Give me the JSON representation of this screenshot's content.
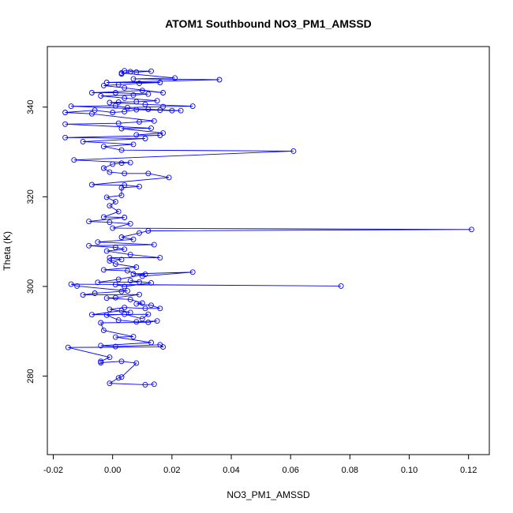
{
  "chart_data": {
    "type": "scatter",
    "title": "ATOM1 Southbound NO3_PM1_AMSSD",
    "xlabel": "NO3_PM1_AMSSD",
    "ylabel": "Theta (K)",
    "xlim": [
      -0.022,
      0.127
    ],
    "ylim": [
      262.5,
      353.5
    ],
    "xticks": [
      -0.02,
      0.0,
      0.02,
      0.04,
      0.06,
      0.08,
      0.1,
      0.12
    ],
    "xtick_labels": [
      "-0.02",
      "0.00",
      "0.02",
      "0.04",
      "0.06",
      "0.08",
      "0.10",
      "0.12"
    ],
    "yticks": [
      280,
      300,
      320,
      340
    ],
    "ytick_labels": [
      "280",
      "300",
      "320",
      "340"
    ],
    "series_color": "#0000ff",
    "marker": "open-circle",
    "connected": true,
    "grid": false,
    "points": [
      [
        0.014,
        278.2
      ],
      [
        0.011,
        278.1
      ],
      [
        -0.001,
        278.4
      ],
      [
        0.002,
        279.6
      ],
      [
        0.003,
        279.8
      ],
      [
        0.008,
        282.9
      ],
      [
        0.003,
        283.3
      ],
      [
        -0.004,
        283.0
      ],
      [
        -0.004,
        283.3
      ],
      [
        -0.001,
        284.2
      ],
      [
        -0.015,
        286.4
      ],
      [
        0.017,
        286.5
      ],
      [
        0.016,
        287.0
      ],
      [
        0.001,
        286.6
      ],
      [
        -0.004,
        286.8
      ],
      [
        0.013,
        287.5
      ],
      [
        0.001,
        288.7
      ],
      [
        0.007,
        288.8
      ],
      [
        -0.003,
        290.2
      ],
      [
        -0.004,
        291.9
      ],
      [
        0.012,
        292.0
      ],
      [
        0.015,
        292.3
      ],
      [
        0.008,
        292.1
      ],
      [
        0.002,
        292.5
      ],
      [
        -0.002,
        293.6
      ],
      [
        0.004,
        293.8
      ],
      [
        0.01,
        292.8
      ],
      [
        0.012,
        293.8
      ],
      [
        -0.007,
        293.7
      ],
      [
        0.003,
        294.6
      ],
      [
        0.006,
        294.2
      ],
      [
        -0.001,
        294.9
      ],
      [
        0.004,
        295.3
      ],
      [
        0.011,
        295.1
      ],
      [
        0.016,
        295.1
      ],
      [
        0.013,
        295.8
      ],
      [
        0.008,
        296.1
      ],
      [
        0.01,
        296.3
      ],
      [
        0.006,
        297.1
      ],
      [
        -0.002,
        297.4
      ],
      [
        0.001,
        297.5
      ],
      [
        0.009,
        298.2
      ],
      [
        -0.01,
        298.1
      ],
      [
        -0.006,
        298.5
      ],
      [
        0.003,
        298.9
      ],
      [
        0.005,
        299.0
      ],
      [
        -0.012,
        300.1
      ],
      [
        -0.014,
        300.5
      ],
      [
        0.077,
        300.1
      ],
      [
        0.001,
        300.4
      ],
      [
        0.004,
        300.0
      ],
      [
        0.013,
        300.8
      ],
      [
        0.006,
        301.3
      ],
      [
        0.009,
        301.0
      ],
      [
        -0.005,
        300.9
      ],
      [
        0.002,
        301.6
      ],
      [
        0.011,
        302.7
      ],
      [
        0.007,
        302.8
      ],
      [
        0.027,
        303.2
      ],
      [
        0.01,
        302.3
      ],
      [
        0.005,
        303.5
      ],
      [
        -0.003,
        303.7
      ],
      [
        0.008,
        304.3
      ],
      [
        0.001,
        305.0
      ],
      [
        -0.001,
        305.7
      ],
      [
        0.003,
        306.0
      ],
      [
        -0.001,
        306.4
      ],
      [
        0.016,
        306.4
      ],
      [
        0.006,
        307.1
      ],
      [
        -0.002,
        307.9
      ],
      [
        0.004,
        308.3
      ],
      [
        0.001,
        308.7
      ],
      [
        -0.008,
        309.1
      ],
      [
        0.014,
        309.3
      ],
      [
        -0.005,
        309.9
      ],
      [
        0.007,
        310.5
      ],
      [
        0.003,
        311.0
      ],
      [
        0.009,
        311.9
      ],
      [
        0.012,
        312.4
      ],
      [
        0.121,
        312.7
      ],
      [
        0.0,
        313.0
      ],
      [
        0.006,
        314.0
      ],
      [
        -0.001,
        314.3
      ],
      [
        -0.008,
        314.5
      ],
      [
        0.004,
        315.4
      ],
      [
        -0.003,
        315.5
      ],
      [
        0.002,
        316.7
      ],
      [
        -0.001,
        318.0
      ],
      [
        0.001,
        318.9
      ],
      [
        -0.002,
        319.9
      ],
      [
        0.003,
        320.3
      ],
      [
        0.003,
        322.0
      ],
      [
        0.009,
        322.3
      ],
      [
        0.004,
        322.6
      ],
      [
        -0.007,
        322.7
      ],
      [
        0.019,
        324.3
      ],
      [
        0.012,
        325.2
      ],
      [
        0.004,
        325.2
      ],
      [
        -0.001,
        325.5
      ],
      [
        -0.003,
        326.4
      ],
      [
        0.0,
        327.3
      ],
      [
        0.003,
        327.5
      ],
      [
        0.006,
        327.6
      ],
      [
        -0.013,
        328.2
      ],
      [
        0.061,
        330.2
      ],
      [
        0.003,
        330.4
      ],
      [
        -0.003,
        331.2
      ],
      [
        0.007,
        331.7
      ],
      [
        -0.01,
        332.3
      ],
      [
        0.011,
        333.0
      ],
      [
        -0.016,
        333.2
      ],
      [
        0.016,
        333.7
      ],
      [
        0.008,
        333.8
      ],
      [
        0.017,
        334.2
      ],
      [
        0.003,
        335.2
      ],
      [
        0.013,
        335.3
      ],
      [
        -0.016,
        336.2
      ],
      [
        0.002,
        336.4
      ],
      [
        0.009,
        336.7
      ],
      [
        0.014,
        336.9
      ],
      [
        -0.007,
        338.5
      ],
      [
        -0.016,
        338.8
      ],
      [
        -0.006,
        339.3
      ],
      [
        0.0,
        338.8
      ],
      [
        0.004,
        339.0
      ],
      [
        0.008,
        339.4
      ],
      [
        0.016,
        339.3
      ],
      [
        0.02,
        339.2
      ],
      [
        0.023,
        339.2
      ],
      [
        0.012,
        339.5
      ],
      [
        -0.014,
        340.2
      ],
      [
        0.001,
        340.3
      ],
      [
        0.005,
        339.9
      ],
      [
        0.017,
        340.1
      ],
      [
        0.027,
        340.2
      ],
      [
        0.011,
        340.6
      ],
      [
        -0.001,
        341.0
      ],
      [
        0.002,
        341.1
      ],
      [
        0.008,
        341.2
      ],
      [
        0.015,
        341.4
      ],
      [
        0.004,
        342.0
      ],
      [
        -0.004,
        342.5
      ],
      [
        0.007,
        342.7
      ],
      [
        0.012,
        342.9
      ],
      [
        0.001,
        343.2
      ],
      [
        -0.007,
        343.2
      ],
      [
        0.01,
        343.7
      ],
      [
        0.017,
        343.2
      ],
      [
        0.004,
        344.3
      ],
      [
        -0.003,
        344.8
      ],
      [
        0.002,
        345.0
      ],
      [
        0.009,
        345.3
      ],
      [
        0.016,
        345.5
      ],
      [
        -0.002,
        345.5
      ],
      [
        0.036,
        346.1
      ],
      [
        0.007,
        346.3
      ],
      [
        0.021,
        346.5
      ],
      [
        0.003,
        347.6
      ],
      [
        0.004,
        348.1
      ],
      [
        0.013,
        348.0
      ],
      [
        0.008,
        347.8
      ],
      [
        0.006,
        347.9
      ],
      [
        0.003,
        347.4
      ]
    ]
  }
}
